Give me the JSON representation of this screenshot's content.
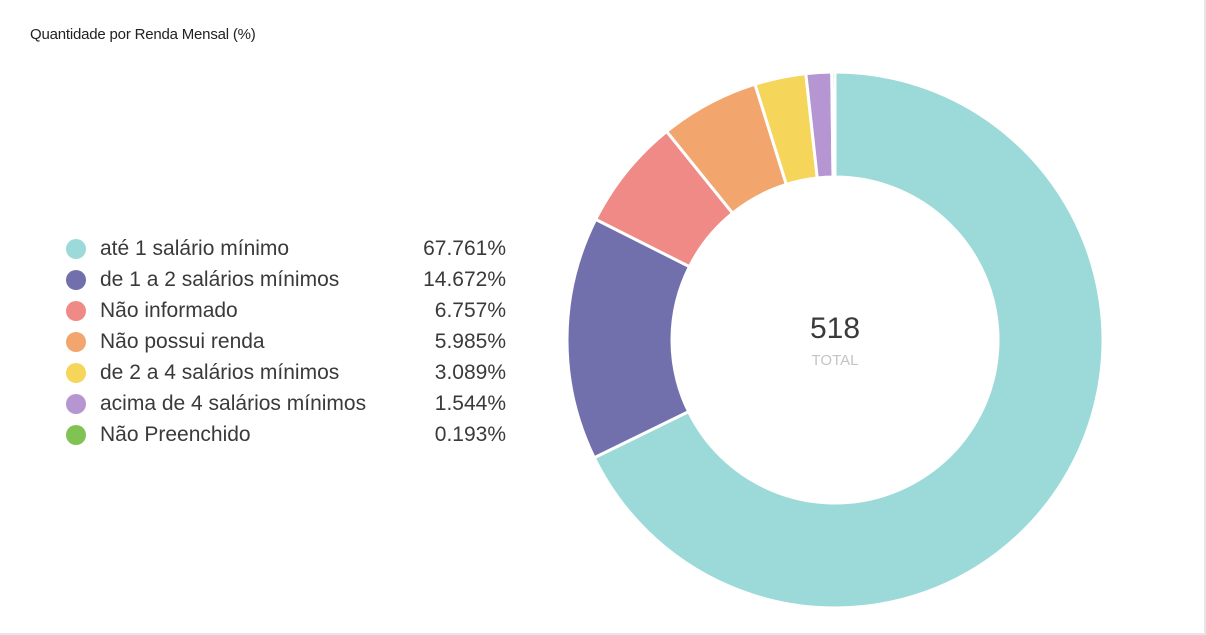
{
  "chart_data": {
    "type": "pie",
    "variant": "donut",
    "title": "Quantidade por Renda Mensal (%)",
    "total_value": "518",
    "total_label": "TOTAL",
    "legend_position": "left",
    "slices": [
      {
        "label": "até 1 salário mínimo",
        "value": 67.761,
        "display": "67.761%",
        "color": "#9bdad8"
      },
      {
        "label": "de 1 a 2 salários mínimos",
        "value": 14.672,
        "display": "14.672%",
        "color": "#7170ad"
      },
      {
        "label": "Não informado",
        "value": 6.757,
        "display": "6.757%",
        "color": "#ef8a87"
      },
      {
        "label": "Não possui renda",
        "value": 5.985,
        "display": "5.985%",
        "color": "#f2a56c"
      },
      {
        "label": "de 2 a 4 salários mínimos",
        "value": 3.089,
        "display": "3.089%",
        "color": "#f5d55a"
      },
      {
        "label": "acima de 4 salários mínimos",
        "value": 1.544,
        "display": "1.544%",
        "color": "#b695d3"
      },
      {
        "label": "Não Preenchido",
        "value": 0.193,
        "display": "0.193%",
        "color": "#80c353"
      }
    ]
  }
}
